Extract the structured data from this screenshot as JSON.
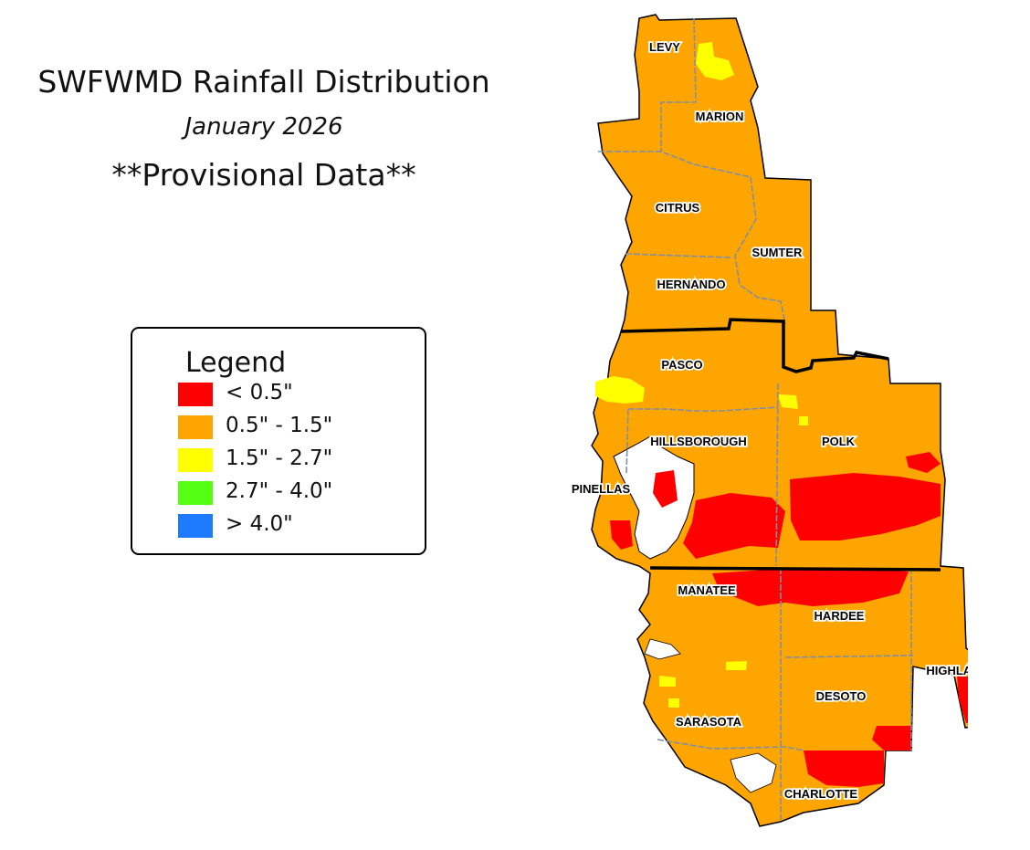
{
  "title": "SWFWMD Rainfall Distribution",
  "subtitle": "January 2026",
  "note": "**Provisional Data**",
  "legend": {
    "title": "Legend",
    "items": [
      {
        "label": "<  0.5\"",
        "color": "#ff0000"
      },
      {
        "label": "0.5\" - 1.5\"",
        "color": "#ffa500"
      },
      {
        "label": "1.5\" - 2.7\"",
        "color": "#ffff00"
      },
      {
        "label": "2.7\" - 4.0\"",
        "color": "#55ff11"
      },
      {
        "label": "> 4.0\"",
        "color": "#1e7bff"
      }
    ]
  },
  "counties": [
    "LEVY",
    "MARION",
    "CITRUS",
    "SUMTER",
    "HERNANDO",
    "PASCO",
    "HILLSBOROUGH",
    "POLK",
    "PINELLAS",
    "MANATEE",
    "HARDEE",
    "HIGHLANDS",
    "DESOTO",
    "SARASOTA",
    "CHARLOTTE"
  ],
  "colors": {
    "base": "#ffa500",
    "low": "#ff0000",
    "mid": "#ffff00",
    "county_border": "#7f8fa6",
    "region_border": "#000000"
  }
}
